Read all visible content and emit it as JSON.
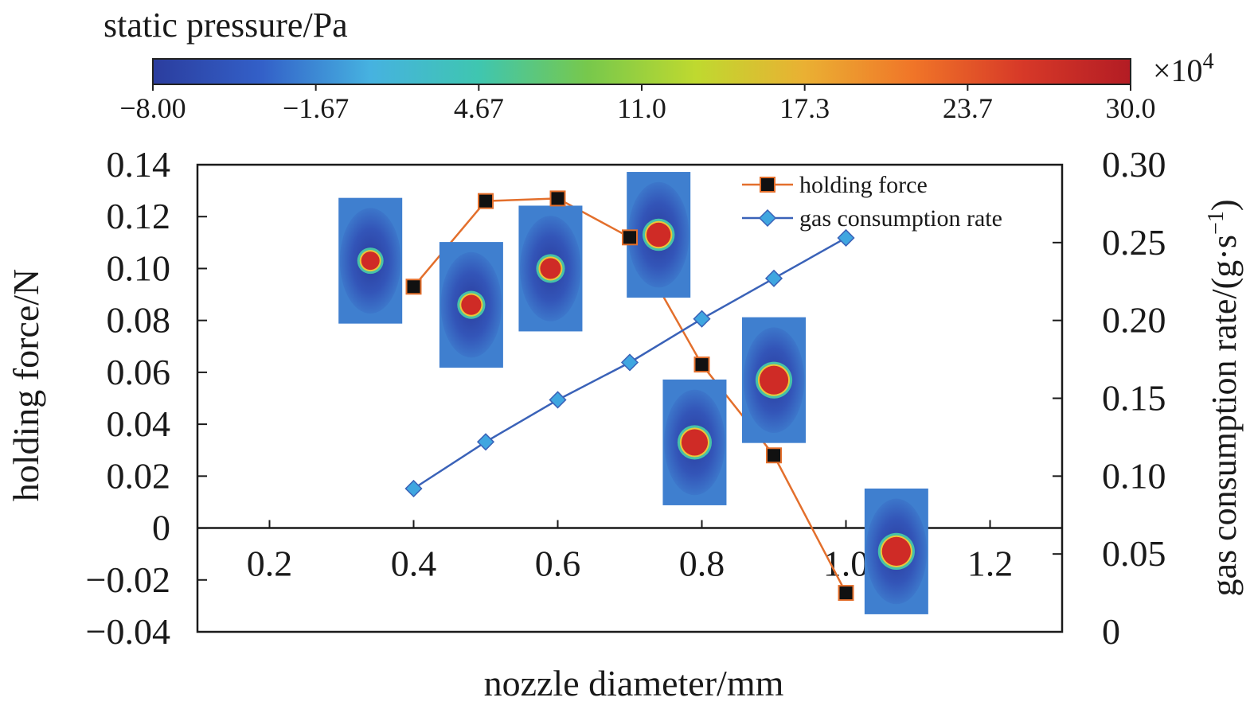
{
  "colorbar": {
    "title": "static pressure/Pa",
    "multiplier_base": "×10",
    "multiplier_exp": "4",
    "ticks": [
      "−8.00",
      "−1.67",
      "4.67",
      "11.0",
      "17.3",
      "23.7",
      "30.0"
    ],
    "range": [
      -8.0,
      30.0
    ],
    "colors": [
      "#2b3d9e",
      "#3360c8",
      "#46b2e0",
      "#3fc6b0",
      "#77c84c",
      "#bfd92f",
      "#eab033",
      "#f07528",
      "#d73928",
      "#b31c24"
    ]
  },
  "chart_data": {
    "type": "line",
    "xlabel": "nozzle diameter/mm",
    "ylabel": "holding force/N",
    "y2label": "gas consumption rate/(g·s",
    "y2label_sup": "−1",
    "y2label_end": ")",
    "xlim": [
      0.1,
      1.3
    ],
    "ylim": [
      -0.04,
      0.14
    ],
    "y2lim": [
      0.0,
      0.3
    ],
    "x_ticks": [
      0.2,
      0.4,
      0.6,
      0.8,
      1.0,
      1.2
    ],
    "x_tick_labels": [
      "0.2",
      "0.4",
      "0.6",
      "0.8",
      "1.0",
      "1.2"
    ],
    "y_ticks": [
      -0.04,
      -0.02,
      0,
      0.02,
      0.04,
      0.06,
      0.08,
      0.1,
      0.12,
      0.14
    ],
    "y_tick_labels": [
      "−0.04",
      "−0.02",
      "0",
      "0.02",
      "0.04",
      "0.06",
      "0.08",
      "0.10",
      "0.12",
      "0.14"
    ],
    "y2_ticks": [
      0,
      0.05,
      0.1,
      0.15,
      0.2,
      0.25,
      0.3
    ],
    "y2_tick_labels": [
      "0",
      "0.05",
      "0.10",
      "0.15",
      "0.20",
      "0.25",
      "0.30"
    ],
    "grid": false,
    "legend_position": "top-right",
    "series": [
      {
        "name": "holding force",
        "axis": "left",
        "color": "#e36f2c",
        "marker": "square",
        "x": [
          0.4,
          0.5,
          0.6,
          0.7,
          0.8,
          0.9,
          1.0
        ],
        "y": [
          0.093,
          0.126,
          0.127,
          0.112,
          0.063,
          0.028,
          -0.025
        ]
      },
      {
        "name": "gas consumption rate",
        "axis": "right",
        "color": "#3a62b8",
        "marker": "diamond",
        "x": [
          0.4,
          0.5,
          0.6,
          0.7,
          0.8,
          0.9,
          1.0
        ],
        "y": [
          0.092,
          0.122,
          0.149,
          0.173,
          0.201,
          0.227,
          0.253
        ]
      }
    ],
    "insets": [
      {
        "nozzle": 0.4,
        "spot": 0.25
      },
      {
        "nozzle": 0.5,
        "spot": 0.3
      },
      {
        "nozzle": 0.6,
        "spot": 0.32
      },
      {
        "nozzle": 0.7,
        "spot": 0.42
      },
      {
        "nozzle": 0.8,
        "spot": 0.48
      },
      {
        "nozzle": 0.9,
        "spot": 0.55
      },
      {
        "nozzle": 1.0,
        "spot": 0.55
      }
    ]
  }
}
